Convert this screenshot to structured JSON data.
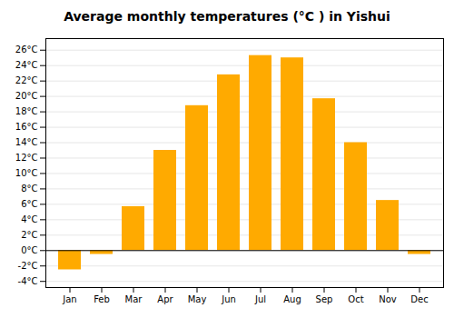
{
  "chart_data": {
    "type": "bar",
    "title": "Average monthly temperatures (°C ) in Yishui",
    "categories": [
      "Jan",
      "Feb",
      "Mar",
      "Apr",
      "May",
      "Jun",
      "Jul",
      "Aug",
      "Sep",
      "Oct",
      "Nov",
      "Dec"
    ],
    "values": [
      -2.5,
      -0.5,
      5.7,
      13.0,
      18.8,
      22.8,
      25.3,
      25.0,
      19.7,
      14.0,
      6.5,
      -0.5
    ],
    "color": "#FFAA00",
    "ylim": [
      -4.8,
      27.5
    ],
    "yticks": [
      {
        "value": -4,
        "label": "-4°C"
      },
      {
        "value": -2,
        "label": "-2°C"
      },
      {
        "value": 0,
        "label": "0°C"
      },
      {
        "value": 2,
        "label": "2°C"
      },
      {
        "value": 4,
        "label": "4°C"
      },
      {
        "value": 6,
        "label": "6°C"
      },
      {
        "value": 8,
        "label": "8°C"
      },
      {
        "value": 10,
        "label": "10°C"
      },
      {
        "value": 12,
        "label": "12°C"
      },
      {
        "value": 14,
        "label": "14°C"
      },
      {
        "value": 16,
        "label": "16°C"
      },
      {
        "value": 18,
        "label": "18°C"
      },
      {
        "value": 20,
        "label": "20°C"
      },
      {
        "value": 22,
        "label": "22°C"
      },
      {
        "value": 24,
        "label": "24°C"
      },
      {
        "value": 26,
        "label": "26°C"
      }
    ],
    "grid": true
  }
}
